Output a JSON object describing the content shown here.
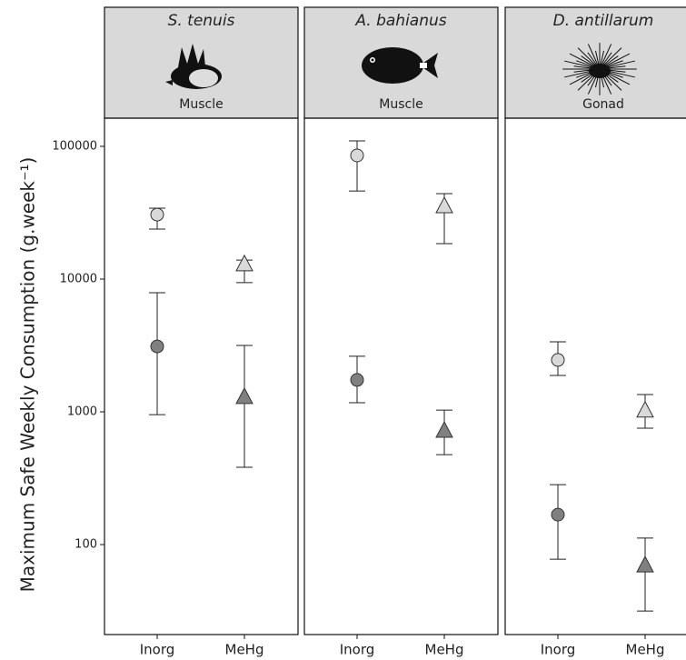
{
  "chart_data": [
    {
      "type": "scatter",
      "title": "S. tenuis",
      "subtitle": "Muscle",
      "ylabel": "Maximum Safe Weekly Consumption (g.week⁻¹)",
      "categories": [
        "Inorg",
        "MeHg"
      ],
      "markers": [
        "circle",
        "triangle"
      ],
      "log_y": true,
      "ylim": [
        21,
        163000
      ],
      "yticks": [
        100,
        1000,
        10000,
        100000
      ],
      "series": [
        {
          "color": "#d9d9d9",
          "values": [
            30600,
            12900
          ],
          "low": [
            23800,
            9400
          ],
          "high": [
            34200,
            13900
          ]
        },
        {
          "color": "#808080",
          "values": [
            3110,
            1290
          ],
          "low": [
            953,
            382
          ],
          "high": [
            7890,
            3160
          ]
        }
      ]
    },
    {
      "type": "scatter",
      "title": "A. bahianus",
      "subtitle": "Muscle",
      "categories": [
        "Inorg",
        "MeHg"
      ],
      "markers": [
        "circle",
        "triangle"
      ],
      "log_y": true,
      "ylim": [
        21,
        163000
      ],
      "series": [
        {
          "color": "#d9d9d9",
          "values": [
            85400,
            35300
          ],
          "low": [
            46100,
            18500
          ],
          "high": [
            110000,
            44000
          ]
        },
        {
          "color": "#808080",
          "values": [
            1740,
            718
          ],
          "low": [
            1170,
            476
          ],
          "high": [
            2620,
            1030
          ]
        }
      ]
    },
    {
      "type": "scatter",
      "title": "D. antillarum",
      "subtitle": "Gonad",
      "categories": [
        "Inorg",
        "MeHg"
      ],
      "markers": [
        "circle",
        "triangle"
      ],
      "log_y": true,
      "ylim": [
        21,
        163000
      ],
      "series": [
        {
          "color": "#d9d9d9",
          "values": [
            2460,
            1020
          ],
          "low": [
            1880,
            753
          ],
          "high": [
            3370,
            1350
          ]
        },
        {
          "color": "#808080",
          "values": [
            168,
            69.5
          ],
          "low": [
            77.6,
            31.6
          ],
          "high": [
            283,
            112
          ]
        }
      ]
    }
  ]
}
